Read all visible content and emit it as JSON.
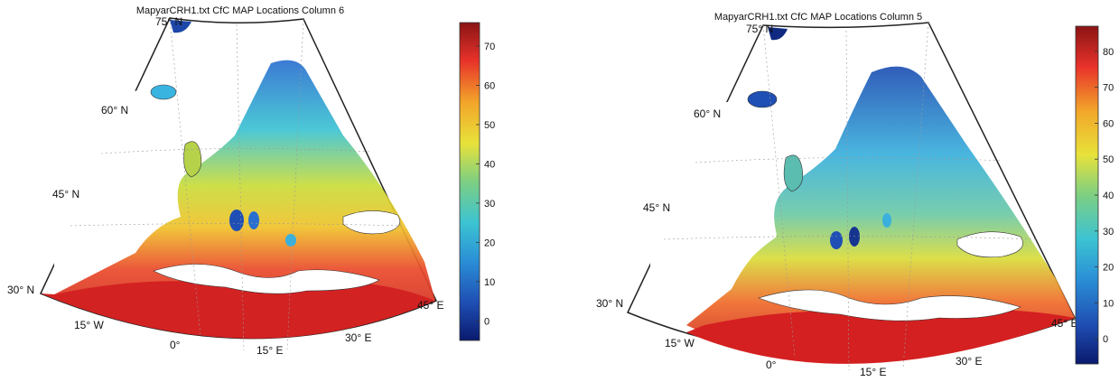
{
  "maps": [
    {
      "title": "MapyarCRH1.txt CfC MAP Locations Column 6",
      "lat_labels": [
        "75° N",
        "60° N",
        "45° N",
        "30° N"
      ],
      "lon_labels": [
        "15° W",
        "0°",
        "15° E",
        "30° E",
        "45° E"
      ],
      "colorbar": {
        "min": -5,
        "max": 76,
        "ticks": [
          "0",
          "10",
          "20",
          "30",
          "40",
          "50",
          "60",
          "70"
        ]
      }
    },
    {
      "title": "MapyarCRH1.txt CfC MAP Locations Column 5",
      "lat_labels": [
        "75° N",
        "60° N",
        "45° N",
        "30° N"
      ],
      "lon_labels": [
        "15° W",
        "0°",
        "15° E",
        "30° E",
        "45° E"
      ],
      "colorbar": {
        "min": -7,
        "max": 87,
        "ticks": [
          "0",
          "10",
          "20",
          "30",
          "40",
          "50",
          "60",
          "70",
          "80"
        ]
      }
    }
  ],
  "colormap": [
    "#0a1a6e",
    "#1f4fb4",
    "#2a8fd6",
    "#3cc3d2",
    "#7dcf82",
    "#e8e23a",
    "#f2a52a",
    "#e8322a",
    "#8a1414"
  ]
}
